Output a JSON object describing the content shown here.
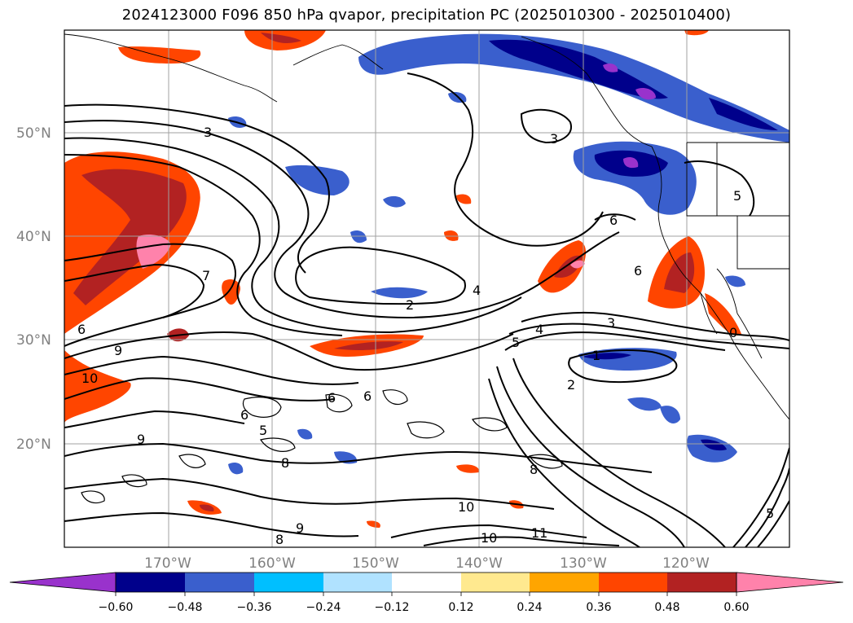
{
  "title": "2024123000 F096 850 hPa qvapor, precipitation PC (2025010300 - 2025010400)",
  "lat_labels": [
    "50°N",
    "40°N",
    "30°N",
    "20°N"
  ],
  "lon_labels": [
    "170°W",
    "160°W",
    "150°W",
    "140°W",
    "130°W",
    "120°W"
  ],
  "colorbar": {
    "ticks": [
      "−0.60",
      "−0.48",
      "−0.36",
      "−0.24",
      "−0.12",
      "0.12",
      "0.24",
      "0.36",
      "0.48",
      "0.60"
    ],
    "colors": [
      "#9932cc",
      "#00008b",
      "#3a5fcd",
      "#00bfff",
      "#b0e2ff",
      "#ffffff",
      "#ffe98f",
      "#ffa500",
      "#ff4500",
      "#b22222",
      "#ff82ab"
    ]
  },
  "contour_labels": [
    "3",
    "3",
    "5",
    "6",
    "6",
    "7",
    "6",
    "9",
    "10",
    "2",
    "4",
    "3",
    "5",
    "4",
    "1",
    "2",
    "6",
    "6",
    "5",
    "6",
    "8",
    "8",
    "9",
    "10",
    "10",
    "11",
    "8",
    "9",
    "0",
    "5"
  ]
}
